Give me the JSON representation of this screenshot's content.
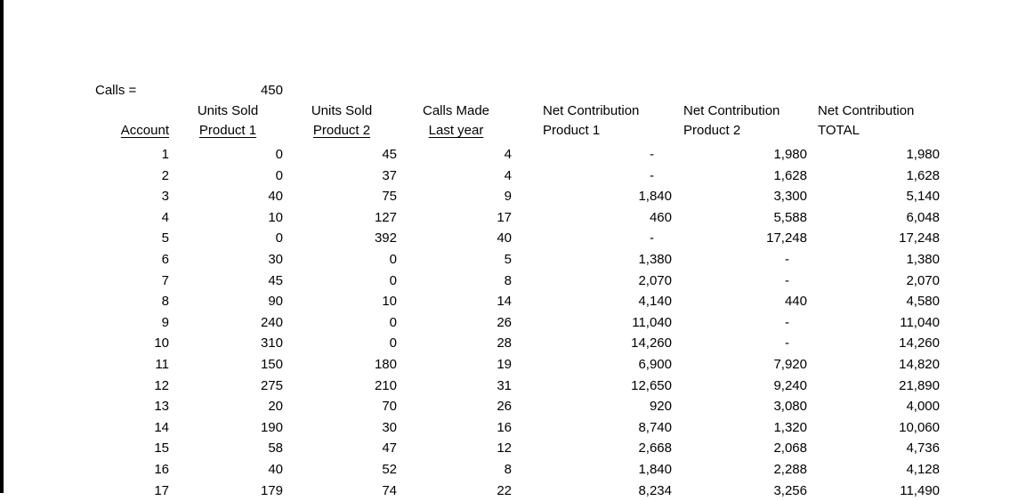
{
  "sheet": {
    "calls_label": "Calls =",
    "calls_value": "450",
    "header_row1": {
      "units_sold_1": "Units Sold",
      "units_sold_2": "Units Sold",
      "calls_made": "Calls Made",
      "net_contribution_1": "Net Contribution",
      "net_contribution_2": "Net Contribution",
      "net_contribution_total": "Net Contribution"
    },
    "header_row2": {
      "account": "Account",
      "product_1": "Product 1",
      "product_2": "Product 2",
      "last_year": "Last year",
      "nc_product_1": "Product 1",
      "nc_product_2": "Product 2",
      "total": "TOTAL"
    },
    "rows": [
      [
        "1",
        "0",
        "45",
        "4",
        "-",
        "1,980",
        "1,980"
      ],
      [
        "2",
        "0",
        "37",
        "4",
        "-",
        "1,628",
        "1,628"
      ],
      [
        "3",
        "40",
        "75",
        "9",
        "1,840",
        "3,300",
        "5,140"
      ],
      [
        "4",
        "10",
        "127",
        "17",
        "460",
        "5,588",
        "6,048"
      ],
      [
        "5",
        "0",
        "392",
        "40",
        "-",
        "17,248",
        "17,248"
      ],
      [
        "6",
        "30",
        "0",
        "5",
        "1,380",
        "-",
        "1,380"
      ],
      [
        "7",
        "45",
        "0",
        "8",
        "2,070",
        "-",
        "2,070"
      ],
      [
        "8",
        "90",
        "10",
        "14",
        "4,140",
        "440",
        "4,580"
      ],
      [
        "9",
        "240",
        "0",
        "26",
        "11,040",
        "-",
        "11,040"
      ],
      [
        "10",
        "310",
        "0",
        "28",
        "14,260",
        "-",
        "14,260"
      ],
      [
        "11",
        "150",
        "180",
        "19",
        "6,900",
        "7,920",
        "14,820"
      ],
      [
        "12",
        "275",
        "210",
        "31",
        "12,650",
        "9,240",
        "21,890"
      ],
      [
        "13",
        "20",
        "70",
        "26",
        "920",
        "3,080",
        "4,000"
      ],
      [
        "14",
        "190",
        "30",
        "16",
        "8,740",
        "1,320",
        "10,060"
      ],
      [
        "15",
        "58",
        "47",
        "12",
        "2,668",
        "2,068",
        "4,736"
      ],
      [
        "16",
        "40",
        "52",
        "8",
        "1,840",
        "2,288",
        "4,128"
      ],
      [
        "17",
        "179",
        "74",
        "22",
        "8,234",
        "3,256",
        "11,490"
      ]
    ],
    "colors": {
      "text": "#000000",
      "background": "#ffffff",
      "left_bar": "#000000"
    }
  }
}
